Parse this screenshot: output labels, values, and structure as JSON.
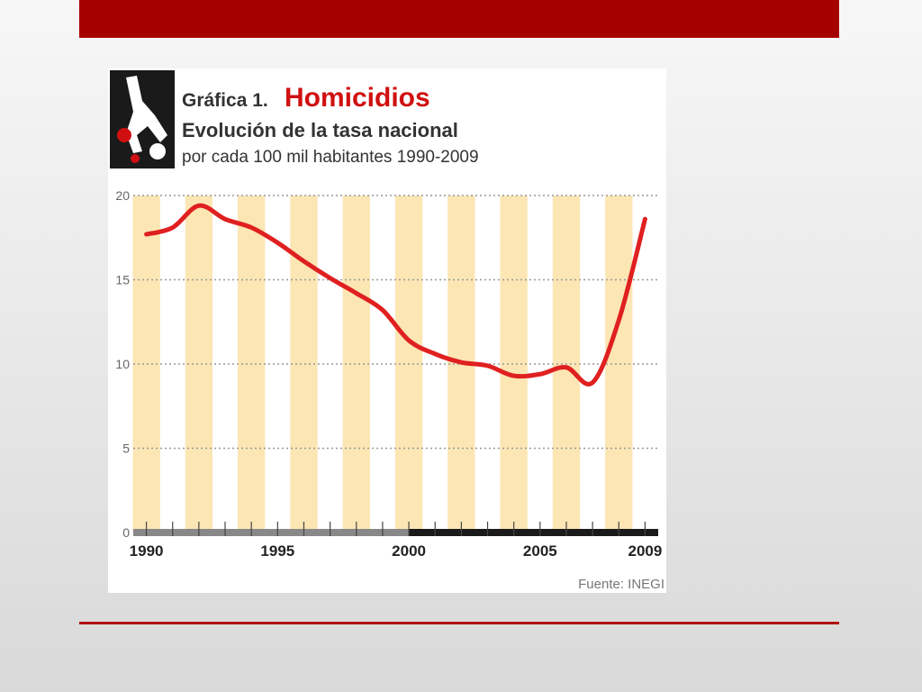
{
  "chart_data": {
    "type": "line",
    "label": "Gráfica 1.",
    "title": "Homicidios",
    "subtitle": "Evolución de la tasa nacional",
    "description": "por cada 100 mil habitantes 1990-2009",
    "source": "Fuente: INEGI",
    "x": [
      1990,
      1991,
      1992,
      1993,
      1994,
      1995,
      1996,
      1997,
      1998,
      1999,
      2000,
      2001,
      2002,
      2003,
      2004,
      2005,
      2006,
      2007,
      2008,
      2009
    ],
    "series": [
      {
        "color": "#e02020",
        "values": [
          17.7,
          18.1,
          19.4,
          18.6,
          18.1,
          17.2,
          16.1,
          15.1,
          14.2,
          13.2,
          11.4,
          10.6,
          10.1,
          9.9,
          9.3,
          9.4,
          9.8,
          8.9,
          12.6,
          18.6
        ]
      }
    ],
    "xlim": [
      1989.5,
      2009.5
    ],
    "xticks": [
      1990,
      1995,
      2000,
      2005,
      2009
    ],
    "ylim": [
      0,
      20
    ],
    "yticks": [
      0,
      5,
      10,
      15,
      20
    ],
    "grid": true
  }
}
